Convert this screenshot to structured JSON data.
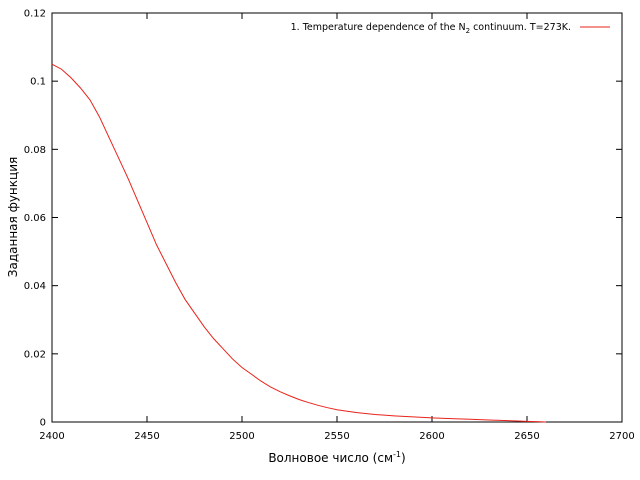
{
  "chart_data": {
    "type": "line",
    "xlabel": "Волновое число (см",
    "xlabel_sup": "-1",
    "xlabel_end": ")",
    "ylabel": "Заданная функция",
    "xlim": [
      2400,
      2700
    ],
    "ylim": [
      0,
      0.12
    ],
    "x_ticks": [
      2400,
      2450,
      2500,
      2550,
      2600,
      2650,
      2700
    ],
    "x_tick_labels": [
      "2400",
      "2450",
      "2500",
      "2550",
      "2600",
      "2650",
      "2700"
    ],
    "y_ticks": [
      0,
      0.02,
      0.04,
      0.06,
      0.08,
      0.1,
      0.12
    ],
    "y_tick_labels": [
      "0",
      "0.02",
      "0.04",
      "0.06",
      "0.08",
      "0.1",
      "0.12"
    ],
    "grid": false,
    "legend_position": "top-right",
    "series": [
      {
        "name_prefix": "1. Temperature dependence of the N",
        "name_sub": "2",
        "name_suffix": " continuum. T=273K.",
        "color": "#e8231b",
        "x": [
          2400,
          2405,
          2410,
          2415,
          2420,
          2425,
          2430,
          2435,
          2440,
          2445,
          2450,
          2455,
          2460,
          2465,
          2470,
          2475,
          2480,
          2485,
          2490,
          2495,
          2500,
          2505,
          2510,
          2515,
          2520,
          2525,
          2530,
          2535,
          2540,
          2545,
          2550,
          2555,
          2560,
          2570,
          2580,
          2590,
          2600,
          2610,
          2620,
          2630,
          2640,
          2650,
          2655,
          2660
        ],
        "y": [
          0.105,
          0.1035,
          0.101,
          0.098,
          0.0945,
          0.0895,
          0.0835,
          0.0775,
          0.0715,
          0.065,
          0.0585,
          0.052,
          0.0465,
          0.041,
          0.036,
          0.032,
          0.028,
          0.0245,
          0.0215,
          0.0185,
          0.016,
          0.014,
          0.012,
          0.0103,
          0.0089,
          0.0077,
          0.0066,
          0.0057,
          0.0049,
          0.0042,
          0.0036,
          0.0032,
          0.0028,
          0.0022,
          0.0018,
          0.0015,
          0.0012,
          0.001,
          0.0008,
          0.0006,
          0.0004,
          0.0002,
          0.0001,
          0.0
        ]
      }
    ]
  }
}
